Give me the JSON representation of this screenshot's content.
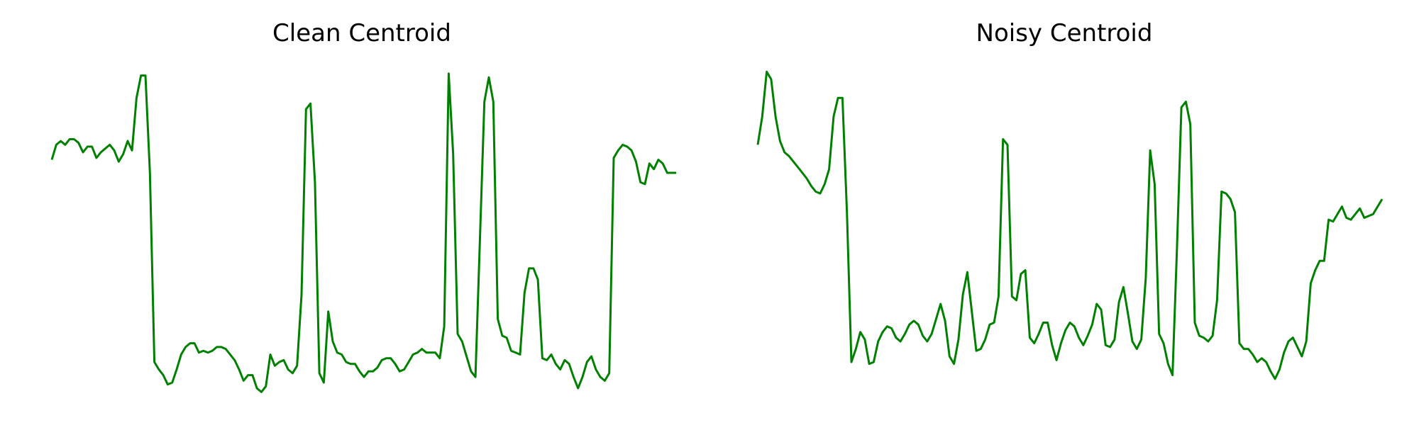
{
  "figure": {
    "line_color": "#008000",
    "background": "#ffffff"
  },
  "chart_data": [
    {
      "type": "line",
      "title": "Clean Centroid",
      "xlabel": "",
      "ylabel": "",
      "axes_visible": false,
      "grid": false,
      "x": [
        0,
        1,
        2,
        3,
        4,
        5,
        6,
        7,
        8,
        9,
        10,
        11,
        12,
        13,
        14,
        15,
        16,
        17,
        18,
        19,
        20,
        21,
        22,
        23,
        24,
        25,
        26,
        27,
        28,
        29,
        30,
        31,
        32,
        33,
        34,
        35,
        36,
        37,
        38,
        39,
        40,
        41,
        42,
        43,
        44,
        45,
        46,
        47,
        48,
        49,
        50,
        51,
        52,
        53,
        54,
        55,
        56,
        57,
        58,
        59,
        60,
        61,
        62,
        63,
        64,
        65,
        66,
        67,
        68,
        69,
        70,
        71,
        72,
        73,
        74,
        75,
        76,
        77,
        78,
        79,
        80,
        81,
        82,
        83,
        84,
        85,
        86,
        87,
        88,
        89,
        90,
        91,
        92,
        93,
        94,
        95,
        96,
        97,
        98,
        99,
        100,
        101,
        102,
        103,
        104,
        105,
        106,
        107,
        108,
        109,
        110,
        111,
        112,
        113,
        114,
        115,
        116,
        117,
        118,
        119,
        120,
        121,
        122,
        123,
        124,
        125,
        126,
        127,
        128,
        129,
        130,
        131,
        132,
        133,
        134,
        135,
        136,
        137,
        138,
        139,
        140
      ],
      "series": [
        {
          "values": [
            0.53,
            0.61,
            0.63,
            0.61,
            0.64,
            0.64,
            0.62,
            0.57,
            0.6,
            0.6,
            0.54,
            0.57,
            0.59,
            0.61,
            0.58,
            0.52,
            0.56,
            0.63,
            0.58,
            0.86,
            0.98,
            0.98,
            0.46,
            -0.55,
            -0.59,
            -0.62,
            -0.67,
            -0.66,
            -0.59,
            -0.51,
            -0.47,
            -0.45,
            -0.45,
            -0.5,
            -0.49,
            -0.5,
            -0.49,
            -0.47,
            -0.47,
            -0.48,
            -0.51,
            -0.54,
            -0.59,
            -0.65,
            -0.62,
            -0.62,
            -0.69,
            -0.71,
            -0.68,
            -0.51,
            -0.57,
            -0.55,
            -0.54,
            -0.59,
            -0.61,
            -0.57,
            -0.19,
            0.8,
            0.83,
            0.41,
            -0.61,
            -0.66,
            -0.28,
            -0.44,
            -0.5,
            -0.51,
            -0.55,
            -0.56,
            -0.56,
            -0.6,
            -0.63,
            -0.6,
            -0.6,
            -0.58,
            -0.54,
            -0.53,
            -0.53,
            -0.56,
            -0.6,
            -0.59,
            -0.55,
            -0.51,
            -0.5,
            -0.48,
            -0.5,
            -0.5,
            -0.5,
            -0.53,
            -0.36,
            0.99,
            0.56,
            -0.4,
            -0.44,
            -0.52,
            -0.6,
            -0.63,
            0.1,
            0.84,
            0.97,
            0.84,
            -0.32,
            -0.41,
            -0.42,
            -0.49,
            -0.5,
            -0.51,
            -0.18,
            -0.05,
            -0.05,
            -0.11,
            -0.53,
            -0.54,
            -0.51,
            -0.56,
            -0.59,
            -0.54,
            -0.56,
            -0.63,
            -0.69,
            -0.63,
            -0.55,
            -0.52,
            -0.59,
            -0.63,
            -0.65,
            -0.61,
            0.54,
            0.58,
            0.61,
            0.6,
            0.58,
            0.52,
            0.41,
            0.4,
            0.51,
            0.48,
            0.53,
            0.51,
            0.46,
            0.46,
            0.46
          ]
        }
      ]
    },
    {
      "type": "line",
      "title": "Noisy Centroid",
      "xlabel": "",
      "ylabel": "",
      "axes_visible": false,
      "grid": false,
      "x": [
        0,
        1,
        2,
        3,
        4,
        5,
        6,
        7,
        8,
        9,
        10,
        11,
        12,
        13,
        14,
        15,
        16,
        17,
        18,
        19,
        20,
        21,
        22,
        23,
        24,
        25,
        26,
        27,
        28,
        29,
        30,
        31,
        32,
        33,
        34,
        35,
        36,
        37,
        38,
        39,
        40,
        41,
        42,
        43,
        44,
        45,
        46,
        47,
        48,
        49,
        50,
        51,
        52,
        53,
        54,
        55,
        56,
        57,
        58,
        59,
        60,
        61,
        62,
        63,
        64,
        65,
        66,
        67,
        68,
        69,
        70,
        71,
        72,
        73,
        74,
        75,
        76,
        77,
        78,
        79,
        80,
        81,
        82,
        83,
        84,
        85,
        86,
        87,
        88,
        89,
        90,
        91,
        92,
        93,
        94,
        95,
        96,
        97,
        98,
        99,
        100,
        101,
        102,
        103,
        104,
        105,
        106,
        107,
        108,
        109,
        110,
        111,
        112,
        113,
        114,
        115,
        116,
        117,
        118,
        119,
        120,
        121,
        122,
        123,
        124,
        125,
        126,
        127,
        128,
        129,
        130,
        131,
        132,
        133,
        134,
        135,
        136,
        137,
        138,
        139,
        140
      ],
      "series": [
        {
          "values": [
            0.61,
            0.76,
            1.0,
            0.96,
            0.76,
            0.63,
            0.57,
            0.55,
            0.52,
            0.49,
            0.46,
            0.43,
            0.39,
            0.36,
            0.35,
            0.4,
            0.48,
            0.76,
            0.86,
            0.86,
            0.25,
            -0.55,
            -0.48,
            -0.39,
            -0.43,
            -0.56,
            -0.55,
            -0.44,
            -0.39,
            -0.36,
            -0.37,
            -0.42,
            -0.44,
            -0.4,
            -0.35,
            -0.33,
            -0.35,
            -0.41,
            -0.44,
            -0.4,
            -0.32,
            -0.24,
            -0.33,
            -0.52,
            -0.56,
            -0.43,
            -0.19,
            -0.07,
            -0.28,
            -0.49,
            -0.48,
            -0.43,
            -0.35,
            -0.34,
            -0.2,
            0.64,
            0.61,
            -0.2,
            -0.22,
            -0.08,
            -0.06,
            -0.42,
            -0.45,
            -0.4,
            -0.34,
            -0.34,
            -0.46,
            -0.54,
            -0.45,
            -0.38,
            -0.34,
            -0.36,
            -0.42,
            -0.46,
            -0.41,
            -0.35,
            -0.24,
            -0.27,
            -0.46,
            -0.47,
            -0.43,
            -0.23,
            -0.15,
            -0.29,
            -0.44,
            -0.48,
            -0.43,
            -0.1,
            0.58,
            0.4,
            -0.4,
            -0.45,
            -0.56,
            -0.62,
            0.06,
            0.81,
            0.84,
            0.72,
            -0.34,
            -0.41,
            -0.42,
            -0.44,
            -0.41,
            -0.22,
            0.36,
            0.35,
            0.32,
            0.25,
            -0.45,
            -0.48,
            -0.48,
            -0.51,
            -0.55,
            -0.53,
            -0.55,
            -0.6,
            -0.64,
            -0.59,
            -0.5,
            -0.44,
            -0.42,
            -0.47,
            -0.52,
            -0.44,
            -0.13,
            -0.06,
            -0.01,
            -0.01,
            0.21,
            0.2,
            0.24,
            0.28,
            0.22,
            0.21,
            0.24,
            0.27,
            0.22,
            0.23,
            0.24,
            0.28,
            0.32
          ]
        }
      ]
    }
  ]
}
